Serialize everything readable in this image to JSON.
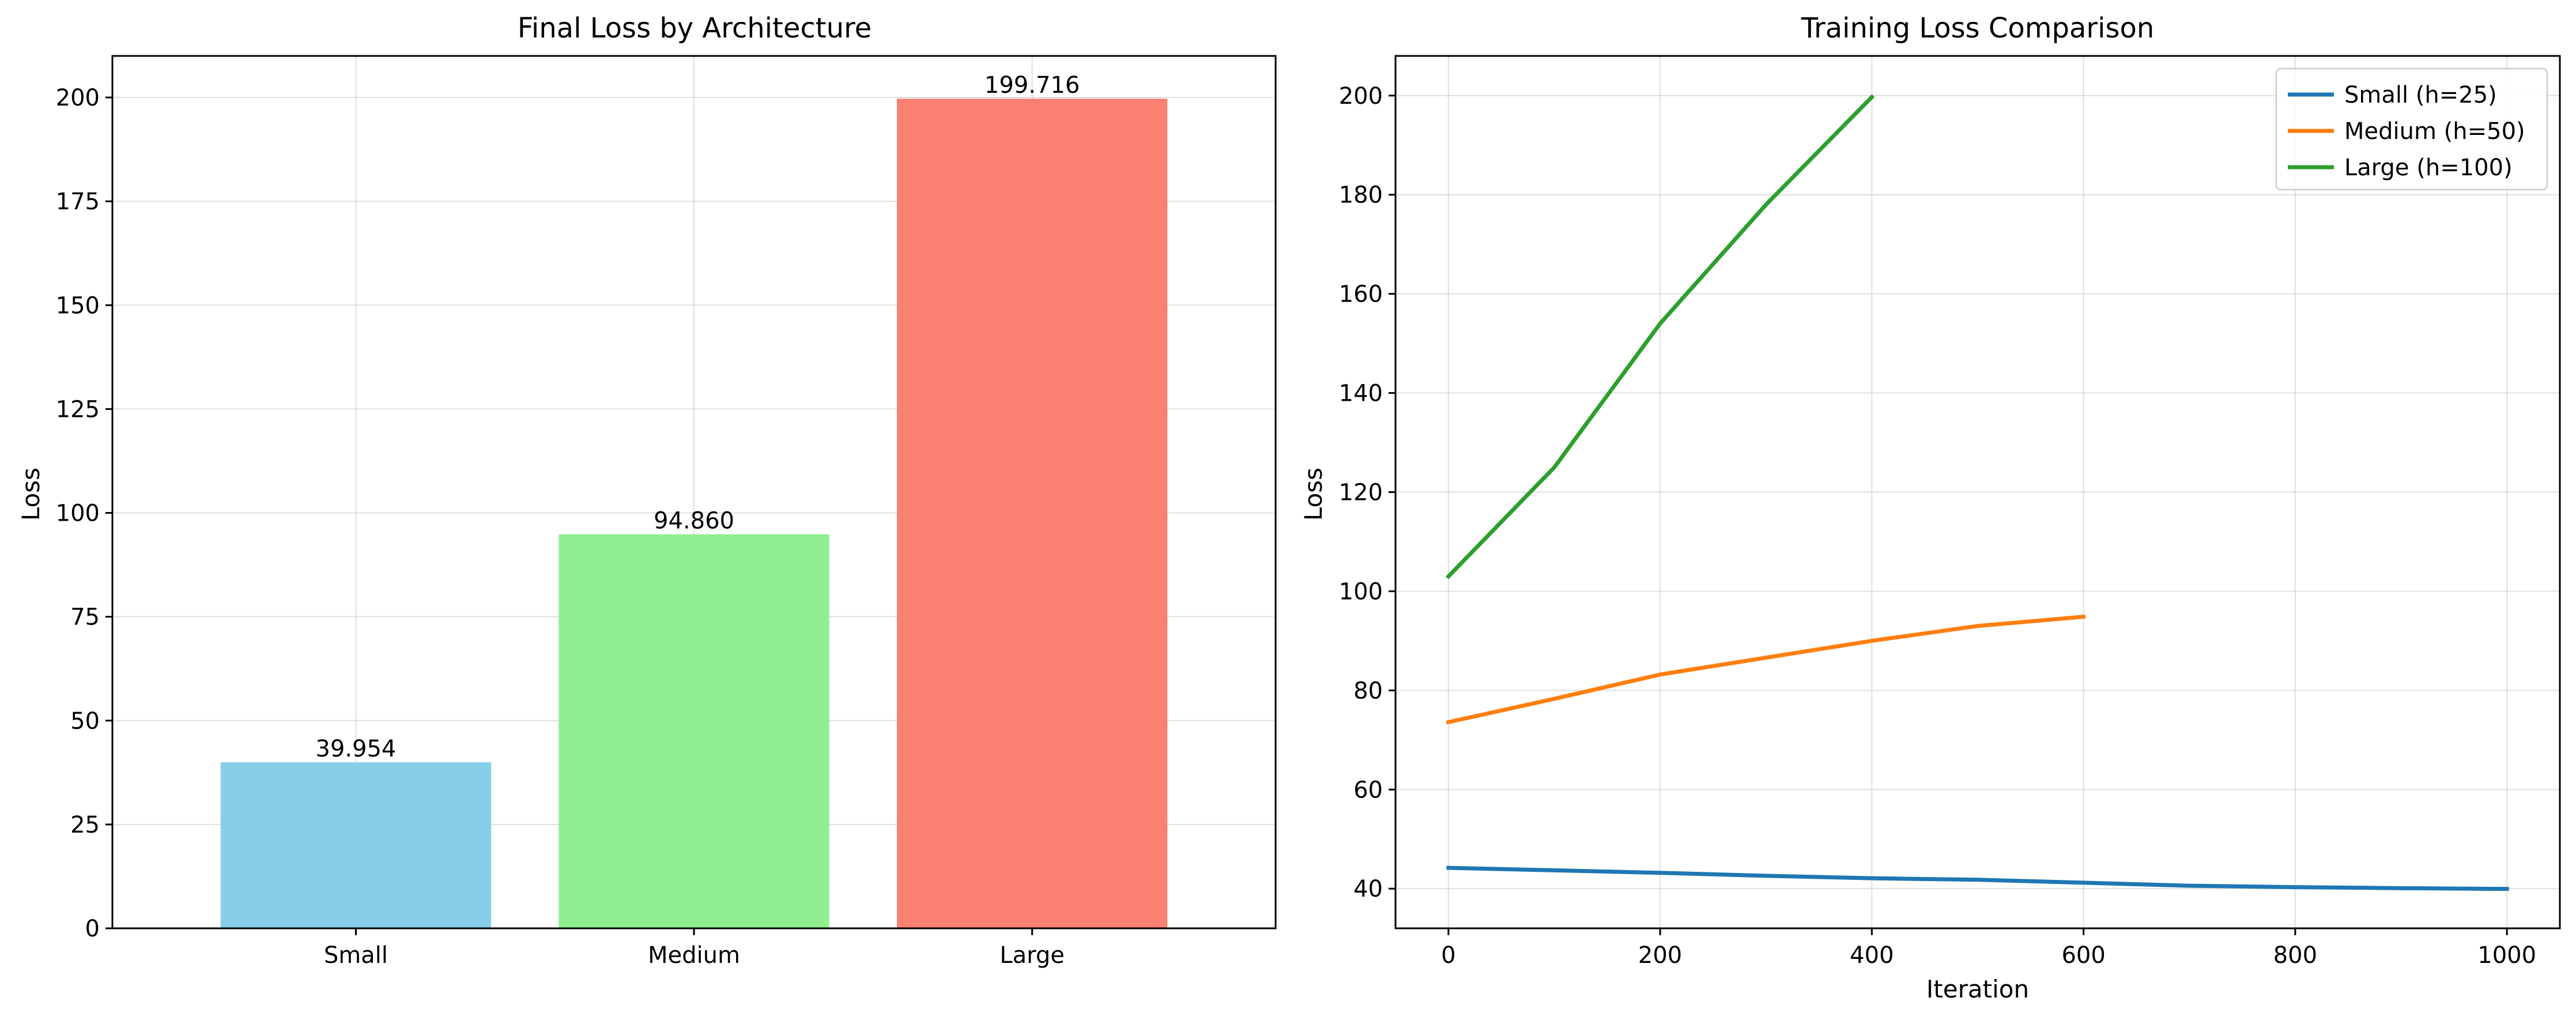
{
  "chart_data": [
    {
      "type": "bar",
      "title": "Final Loss by Architecture",
      "xlabel": "",
      "ylabel": "Loss",
      "categories": [
        "Small",
        "Medium",
        "Large"
      ],
      "values": [
        39.954,
        94.86,
        199.716
      ],
      "value_labels": [
        "39.954",
        "94.860",
        "199.716"
      ],
      "colors": [
        "#87CEEB",
        "#90EE90",
        "#FA8072"
      ],
      "ylim": [
        0,
        210
      ],
      "yticks": [
        0,
        25,
        50,
        75,
        100,
        125,
        150,
        175,
        200
      ],
      "grid": true
    },
    {
      "type": "line",
      "title": "Training Loss Comparison",
      "xlabel": "Iteration",
      "ylabel": "Loss",
      "xlim": [
        -50,
        1050
      ],
      "ylim": [
        32,
        208
      ],
      "xticks": [
        0,
        200,
        400,
        600,
        800,
        1000
      ],
      "yticks": [
        40,
        60,
        80,
        100,
        120,
        140,
        160,
        180,
        200
      ],
      "grid": true,
      "legend_position": "top-right",
      "series": [
        {
          "name": "Small (h=25)",
          "color": "#1f77b4",
          "x": [
            0,
            100,
            200,
            300,
            400,
            500,
            600,
            700,
            800,
            900,
            1000
          ],
          "y": [
            44.2,
            43.7,
            43.2,
            42.6,
            42.1,
            41.8,
            41.2,
            40.6,
            40.3,
            40.1,
            39.95
          ]
        },
        {
          "name": "Medium (h=50)",
          "color": "#ff7f0e",
          "x": [
            0,
            100,
            200,
            300,
            400,
            500,
            600
          ],
          "y": [
            73.6,
            78.3,
            83.2,
            86.6,
            90.0,
            93.0,
            94.86
          ]
        },
        {
          "name": "Large (h=100)",
          "color": "#2ca02c",
          "x": [
            0,
            100,
            200,
            300,
            400
          ],
          "y": [
            103.0,
            125.0,
            154.0,
            178.0,
            199.7
          ]
        }
      ]
    }
  ]
}
